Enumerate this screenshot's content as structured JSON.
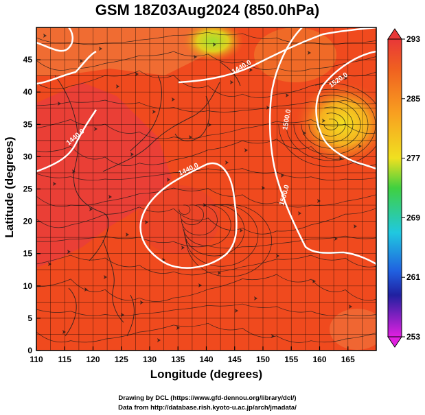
{
  "title": "GSM 18Z03Aug2024 (850.0hPa)",
  "map": {
    "xlabel": "Longitude (degrees)",
    "ylabel": "Latitude  (degrees)",
    "lon_range": [
      110,
      170
    ],
    "lat_range": [
      0,
      50
    ],
    "lon_ticks": [
      "110",
      "115",
      "120",
      "125",
      "130",
      "135",
      "140",
      "145",
      "150",
      "155",
      "160",
      "165"
    ],
    "lat_ticks": [
      "0",
      "5",
      "10",
      "15",
      "20",
      "25",
      "30",
      "35",
      "40",
      "45"
    ],
    "field_colors": {
      "base": "#f04a1e",
      "warm_land": "#e83c3c",
      "cool_high": "#f5d020",
      "pale_north": "#f09050"
    },
    "contour_labels": [
      "1440.0",
      "1440.0",
      "1440.0",
      "1500.0",
      "1500.0",
      "1520.0"
    ]
  },
  "colorbar": {
    "labels": [
      "293",
      "285",
      "277",
      "269",
      "261",
      "253"
    ],
    "colors": [
      "#e83838",
      "#f06020",
      "#f8a020",
      "#f0e020",
      "#40d040",
      "#20c8e0",
      "#2060e0",
      "#2020a0",
      "#8020c0",
      "#e020e0"
    ]
  },
  "credits": {
    "line1": "Drawing by DCL (https://www.gfd-dennou.org/library/dcl/)",
    "line2": "Data from http://database.rish.kyoto-u.ac.jp/arch/jmadata/"
  }
}
